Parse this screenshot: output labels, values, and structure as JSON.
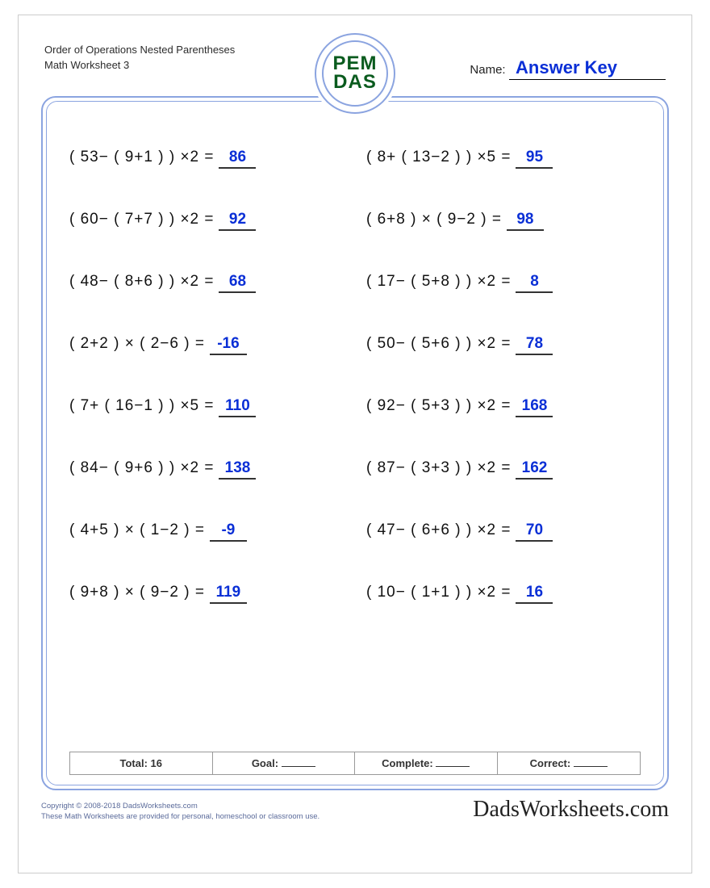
{
  "header": {
    "title_line1": "Order of Operations Nested Parentheses",
    "title_line2": "Math Worksheet 3",
    "name_label": "Name:",
    "answer_key": "Answer Key"
  },
  "badge": {
    "line1": "PEM",
    "line2": "DAS"
  },
  "problems": [
    {
      "expr": "( 53− ( 9+1 ) ) ×2 =",
      "ans": "86"
    },
    {
      "expr": "( 8+ ( 13−2 ) ) ×5 =",
      "ans": "95"
    },
    {
      "expr": "( 60− ( 7+7 ) ) ×2 =",
      "ans": "92"
    },
    {
      "expr": "( 6+8 ) × ( 9−2 ) =",
      "ans": "98"
    },
    {
      "expr": "( 48− ( 8+6 ) ) ×2 =",
      "ans": "68"
    },
    {
      "expr": "( 17− ( 5+8 ) ) ×2 =",
      "ans": "8"
    },
    {
      "expr": "( 2+2 ) × ( 2−6 ) =",
      "ans": "-16"
    },
    {
      "expr": "( 50− ( 5+6 ) ) ×2 =",
      "ans": "78"
    },
    {
      "expr": "( 7+ ( 16−1 ) ) ×5 =",
      "ans": "110"
    },
    {
      "expr": "( 92− ( 5+3 ) ) ×2 =",
      "ans": "168"
    },
    {
      "expr": "( 84− ( 9+6 ) ) ×2 =",
      "ans": "138"
    },
    {
      "expr": "( 87− ( 3+3 ) ) ×2 =",
      "ans": "162"
    },
    {
      "expr": "( 4+5 ) × ( 1−2 ) =",
      "ans": "-9"
    },
    {
      "expr": "( 47− ( 6+6 ) ) ×2 =",
      "ans": "70"
    },
    {
      "expr": "( 9+8 ) × ( 9−2 ) =",
      "ans": "119"
    },
    {
      "expr": "( 10− ( 1+1 ) ) ×2 =",
      "ans": "16"
    }
  ],
  "totals": {
    "total_label": "Total: 16",
    "goal_label": "Goal:",
    "complete_label": "Complete:",
    "correct_label": "Correct:"
  },
  "footer": {
    "copyright": "Copyright © 2008-2018 DadsWorksheets.com",
    "note": "These Math Worksheets are provided for personal, homeschool or classroom use.",
    "brand": "DadsWorksheets.com"
  },
  "style": {
    "answer_color": "#0a2fd6",
    "frame_border_color": "#8ba4e0",
    "badge_text_color": "#0a5b1e",
    "problem_fontsize": 19,
    "background": "#ffffff"
  }
}
